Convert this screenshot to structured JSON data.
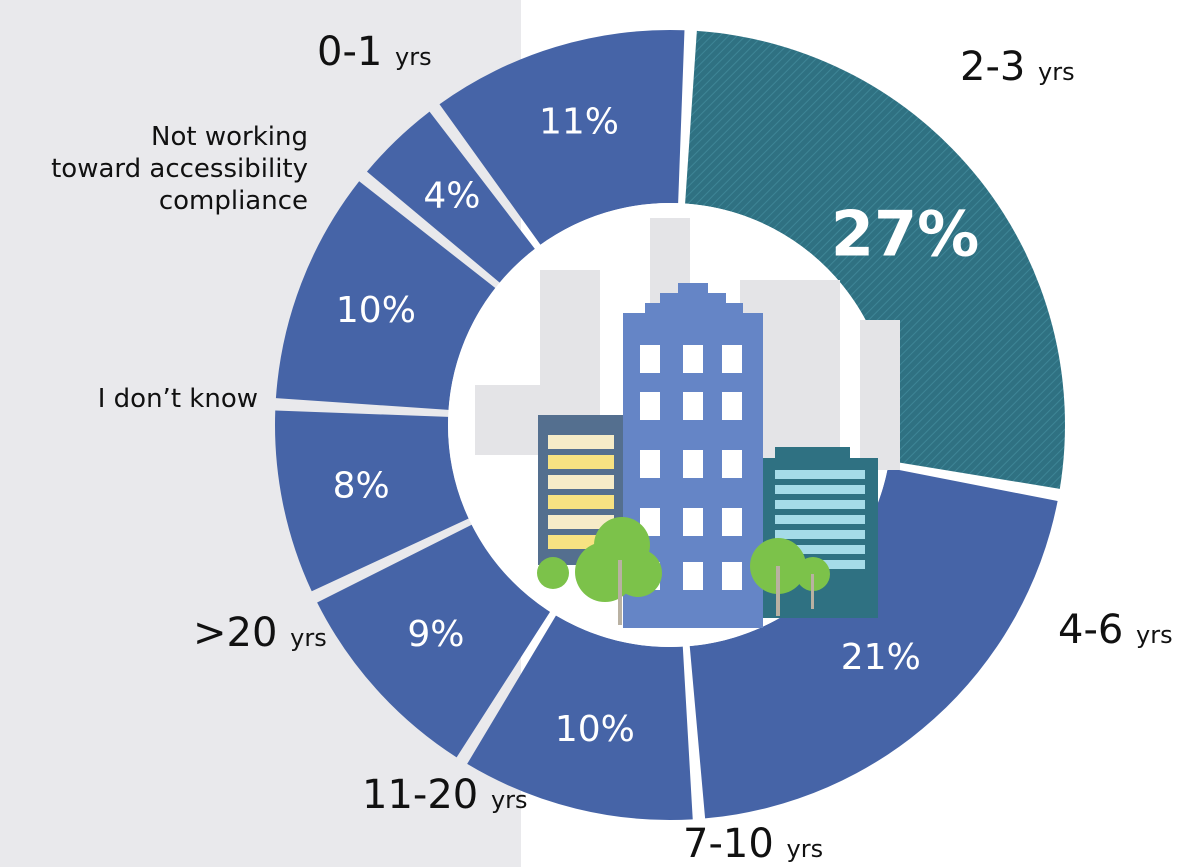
{
  "chart_data": {
    "type": "pie",
    "donut": true,
    "start_angle_deg": 3,
    "slices": [
      {
        "label": "2-3",
        "unit": "yrs",
        "value": 27,
        "display": "27%",
        "color": "#2f7182",
        "hatched": true
      },
      {
        "label": "4-6",
        "unit": "yrs",
        "value": 21,
        "display": "21%",
        "color": "#4664a7"
      },
      {
        "label": "7-10",
        "unit": "yrs",
        "value": 10,
        "display": "10%",
        "color": "#4664a7"
      },
      {
        "label": "11-20",
        "unit": "yrs",
        "value": 9,
        "display": "9%",
        "color": "#4664a7"
      },
      {
        "label": ">20",
        "unit": "yrs",
        "value": 8,
        "display": "8%",
        "color": "#4664a7"
      },
      {
        "label": "I don’t know",
        "unit": "",
        "value": 10,
        "display": "10%",
        "color": "#4664a7"
      },
      {
        "label": "Not working toward accessibility compliance",
        "lines": [
          "Not working",
          "toward accessibility",
          "compliance"
        ],
        "unit": "",
        "value": 4,
        "display": "4%",
        "color": "#4664a7"
      },
      {
        "label": "0-1",
        "unit": "yrs",
        "value": 11,
        "display": "11%",
        "color": "#4664a7"
      }
    ]
  }
}
